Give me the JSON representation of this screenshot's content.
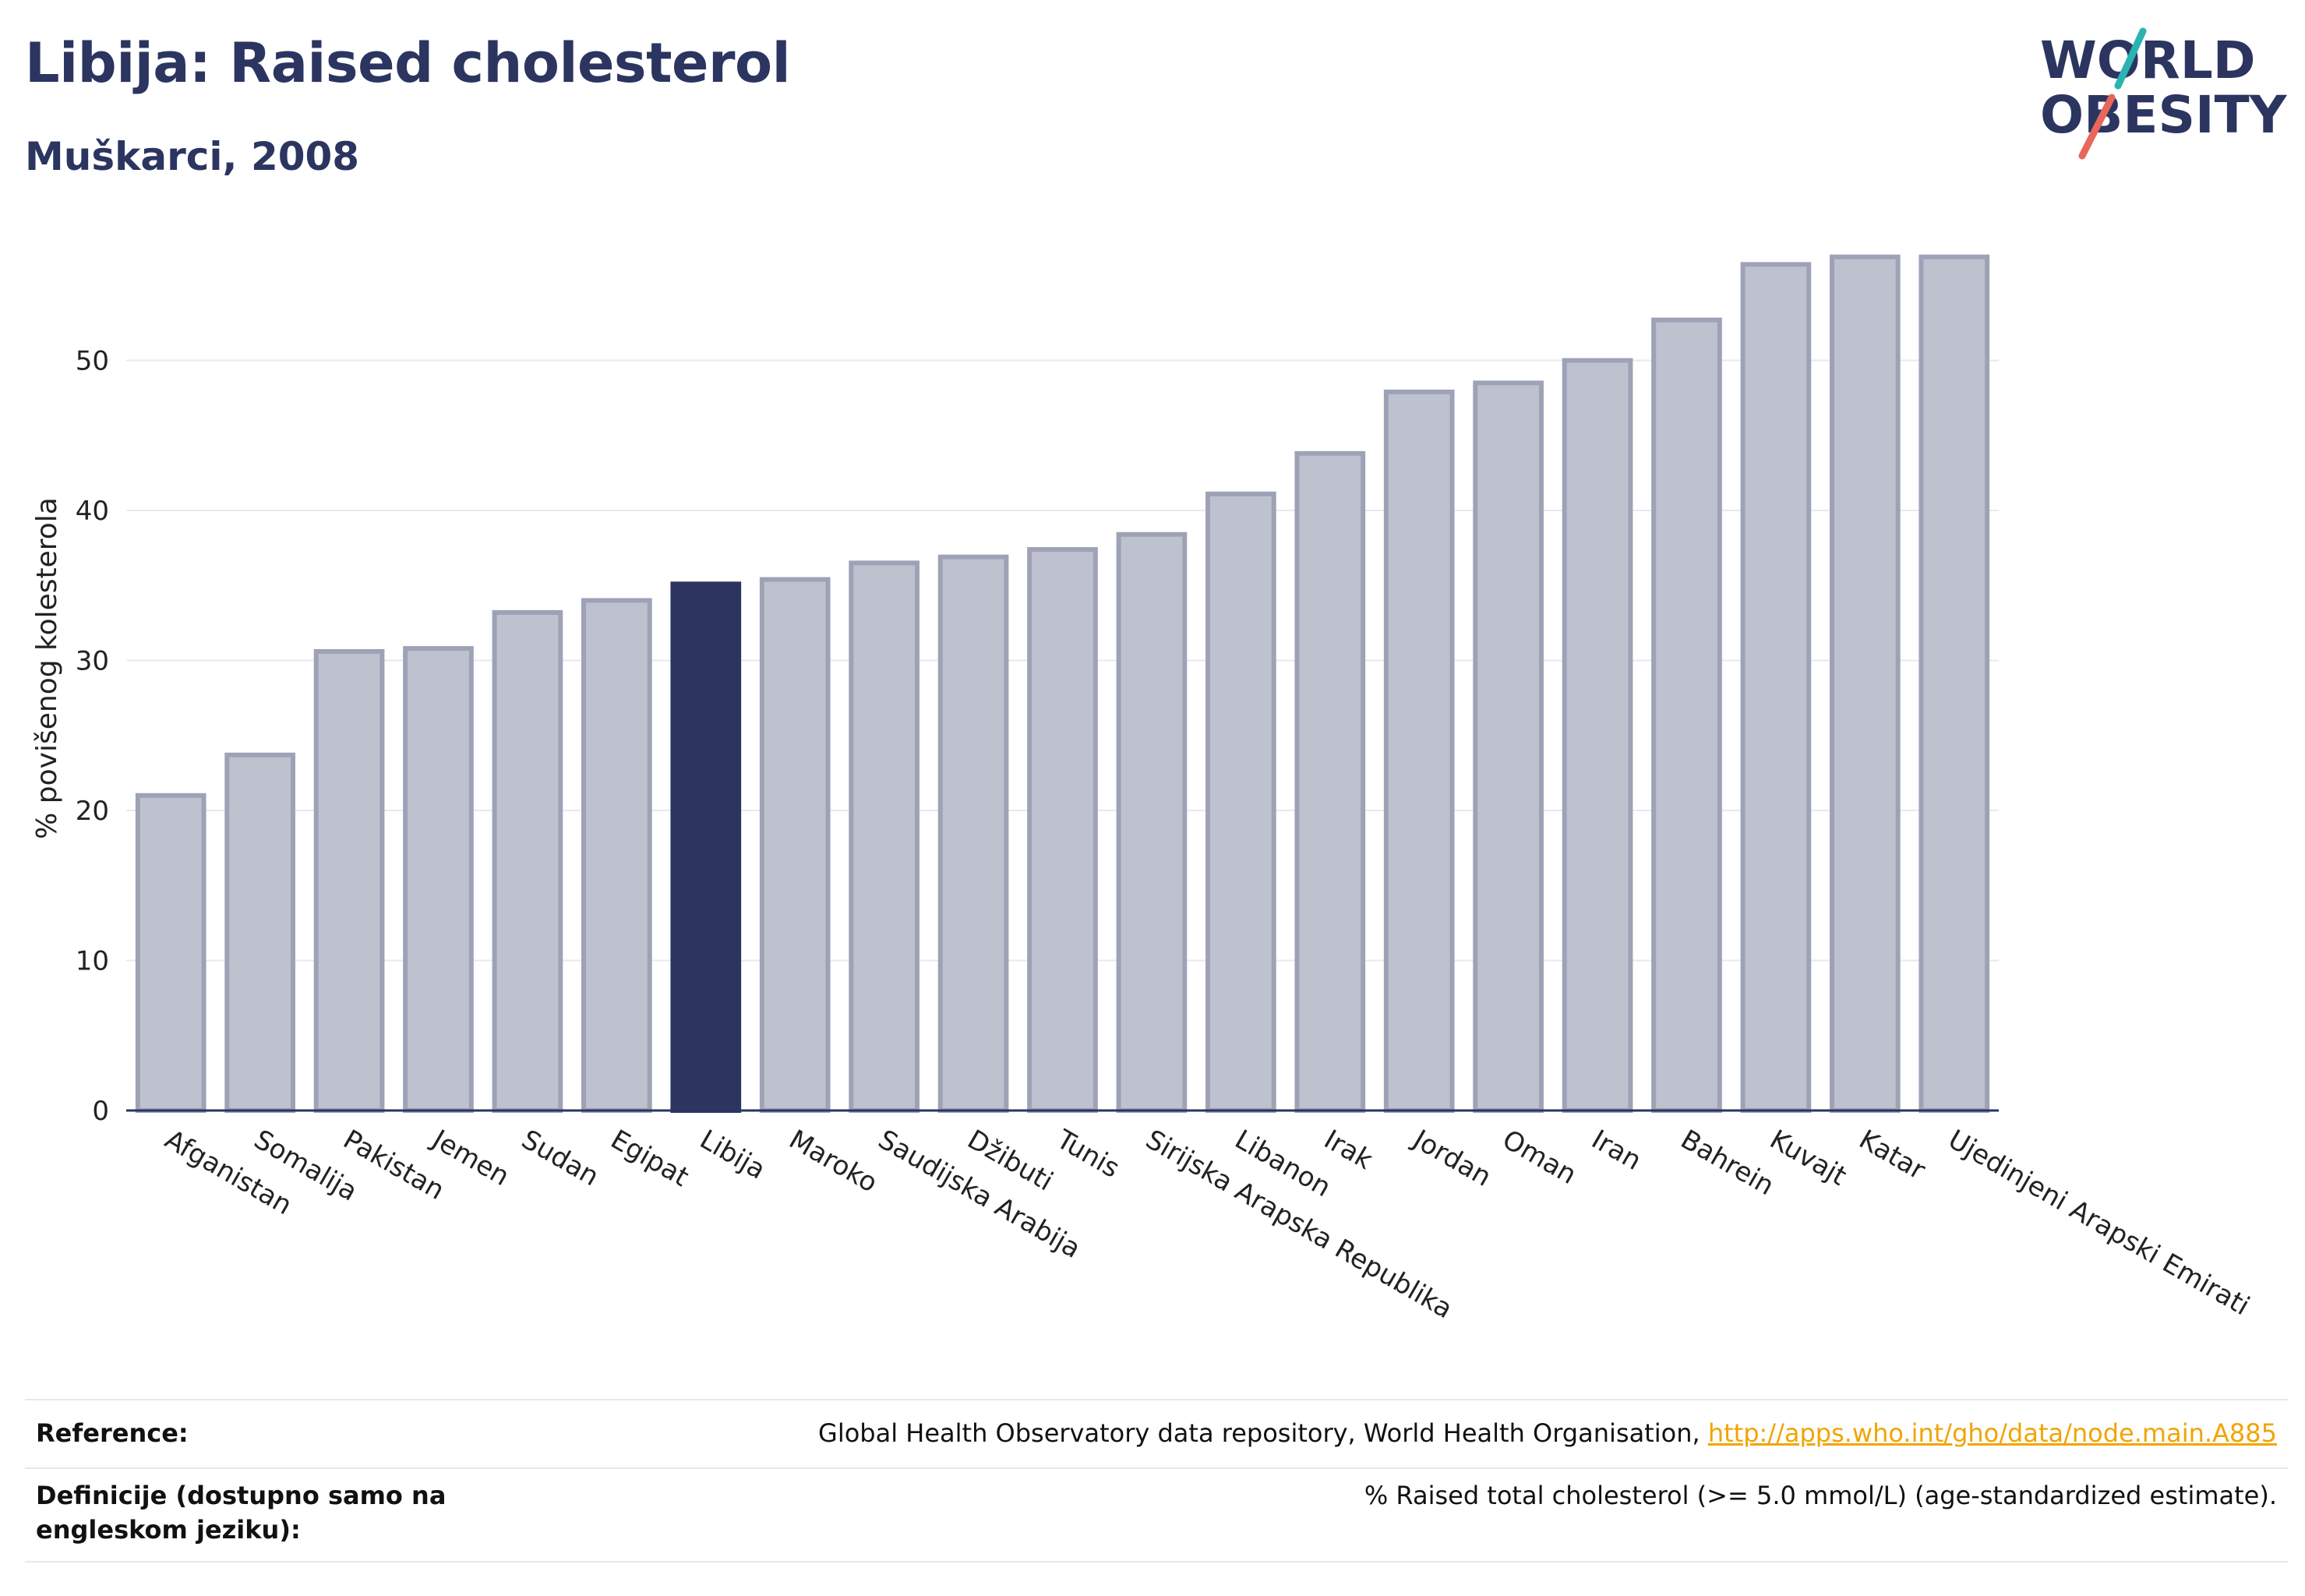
{
  "title": "Libija: Raised cholesterol",
  "subtitle": "Muškarci, 2008",
  "logo": {
    "line1": "WORLD",
    "line2": "OBESITY"
  },
  "colors": {
    "highlight": "#2b3560",
    "bar": "#bec1ce",
    "bar_edge": "#9ea2b6",
    "accent_orange": "#f0a500",
    "logo_teal": "#2bb3b1",
    "logo_coral": "#e8665a"
  },
  "chart_data": {
    "type": "bar",
    "categories": [
      "Afganistan",
      "Somalija",
      "Pakistan",
      "Jemen",
      "Sudan",
      "Egipat",
      "Libija",
      "Maroko",
      "Saudijska Arabija",
      "Džibuti",
      "Tunis",
      "Sirijska Arapska Republika",
      "Libanon",
      "Irak",
      "Jordan",
      "Oman",
      "Iran",
      "Bahrein",
      "Kuvajt",
      "Katar",
      "Ujedinjeni Arapski Emirati"
    ],
    "values": [
      21.0,
      23.7,
      30.6,
      30.8,
      33.2,
      34.0,
      35.1,
      35.4,
      36.5,
      36.9,
      37.4,
      38.4,
      41.1,
      43.8,
      47.9,
      48.5,
      50.0,
      52.7,
      56.4,
      56.9,
      56.9
    ],
    "highlight": "Libija",
    "ylabel": "% povišenog kolesterola",
    "xlabel": "",
    "ylim": [
      0,
      60
    ],
    "yticks": [
      0,
      10,
      20,
      30,
      40,
      50
    ],
    "grid": true
  },
  "footer": {
    "reference_label": "Reference:",
    "reference_text": "Global Health Observatory data repository, World Health Organisation, ",
    "reference_link": "http://apps.who.int/gho/data/node.main.A885",
    "definition_label": "Definicije (dostupno samo na engleskom jeziku):",
    "definition_text": "% Raised total cholesterol (>= 5.0 mmol/L) (age-standardized estimate)."
  }
}
